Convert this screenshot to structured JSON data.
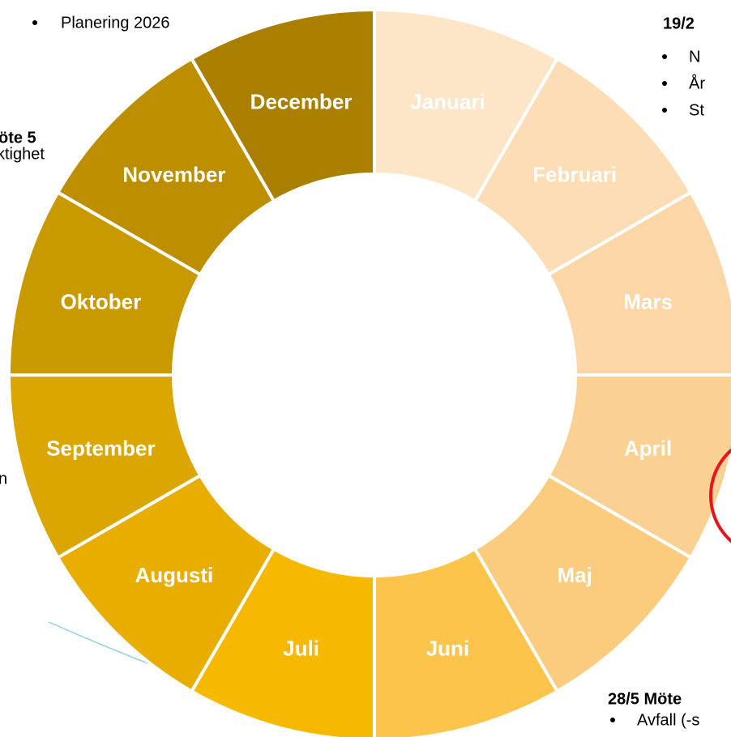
{
  "wheel": {
    "months": [
      {
        "label": "Januari",
        "color": "#fde6c8"
      },
      {
        "label": "Februari",
        "color": "#fcddb6"
      },
      {
        "label": "Mars",
        "color": "#fbd7a8"
      },
      {
        "label": "April",
        "color": "#fbd193"
      },
      {
        "label": "Maj",
        "color": "#fbcb7e"
      },
      {
        "label": "Juni",
        "color": "#fcc44a"
      },
      {
        "label": "Juli",
        "color": "#f6b900"
      },
      {
        "label": "Augusti",
        "color": "#e9ad00"
      },
      {
        "label": "September",
        "color": "#dca600"
      },
      {
        "label": "Oktober",
        "color": "#c99a00"
      },
      {
        "label": "November",
        "color": "#bc8e00"
      },
      {
        "label": "December",
        "color": "#aa7f00"
      }
    ]
  },
  "notes": {
    "top_left": {
      "items": [
        "Planering 2026"
      ]
    },
    "left_meeting": {
      "title": "öte 5",
      "items": [
        "ktighet"
      ]
    },
    "left_fragment": "n",
    "top_right": {
      "title": "19/2",
      "items": [
        "N",
        "År",
        "St"
      ]
    },
    "bottom_right": {
      "title": "28/5 Möte",
      "items": [
        "Avfall (-s"
      ]
    }
  }
}
